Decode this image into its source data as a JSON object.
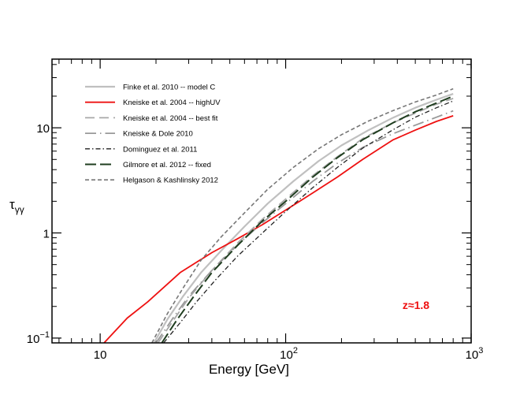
{
  "chart_data": {
    "type": "line",
    "title": "",
    "xlabel": "Energy [GeV]",
    "ylabel": "τγγ",
    "xscale": "log",
    "yscale": "log",
    "xlim": [
      5.5,
      1000
    ],
    "ylim": [
      0.09,
      45
    ],
    "x_ticks": [
      {
        "value": 10,
        "label": "10",
        "sup": ""
      },
      {
        "value": 100,
        "label": "10",
        "sup": "2"
      },
      {
        "value": 1000,
        "label": "10",
        "sup": "3"
      }
    ],
    "y_ticks": [
      {
        "value": 0.1,
        "label": "10",
        "sup": "−1"
      },
      {
        "value": 1,
        "label": "1",
        "sup": ""
      },
      {
        "value": 10,
        "label": "10",
        "sup": ""
      }
    ],
    "annotation": {
      "text": "z≈1.8",
      "color": "#ee1111"
    },
    "legend_position": "top-left",
    "series": [
      {
        "name": "Finke et al. 2010 -- model C",
        "color": "#c0c0c0",
        "dash": "",
        "width": 2.2,
        "x": [
          19.5,
          23,
          28,
          35,
          45,
          60,
          80,
          110,
          150,
          200,
          280,
          380,
          500,
          650,
          800
        ],
        "y": [
          0.09,
          0.15,
          0.25,
          0.42,
          0.68,
          1.15,
          1.9,
          3.1,
          4.8,
          6.8,
          9.5,
          12.5,
          15.5,
          18.5,
          21
        ]
      },
      {
        "name": "Kneiske et al. 2004 -- highUV",
        "color": "#ee1111",
        "dash": "",
        "width": 1.8,
        "x": [
          10.5,
          14,
          18,
          27,
          40,
          55,
          75,
          100,
          140,
          190,
          260,
          380,
          500,
          650,
          800
        ],
        "y": [
          0.09,
          0.155,
          0.22,
          0.42,
          0.65,
          0.88,
          1.2,
          1.65,
          2.4,
          3.4,
          5.0,
          7.7,
          9.5,
          11.5,
          13
        ]
      },
      {
        "name": "Kneiske et al. 2004 -- best fit",
        "color": "#a8a8a8",
        "dash": "12,6",
        "width": 1.8,
        "x": [
          20.5,
          25,
          30,
          40,
          55,
          75,
          100,
          140,
          190,
          260,
          380,
          500,
          650,
          800
        ],
        "y": [
          0.09,
          0.15,
          0.24,
          0.44,
          0.8,
          1.35,
          2.1,
          3.5,
          5.3,
          7.9,
          11.2,
          13.8,
          16.8,
          19
        ]
      },
      {
        "name": "Kneiske & Dole 2010",
        "color": "#999999",
        "dash": "14,5,1.5,5",
        "width": 1.8,
        "x": [
          20,
          25,
          30,
          40,
          55,
          75,
          100,
          140,
          190,
          260,
          380,
          500,
          650,
          800
        ],
        "y": [
          0.09,
          0.16,
          0.25,
          0.44,
          0.77,
          1.25,
          1.9,
          3.1,
          4.6,
          6.5,
          8.8,
          10.6,
          12.6,
          14.5
        ]
      },
      {
        "name": "Dominguez et al. 2011",
        "color": "#222222",
        "dash": "6,3,1.5,3",
        "width": 1.3,
        "x": [
          22,
          27,
          33,
          42,
          55,
          75,
          100,
          140,
          190,
          260,
          380,
          500,
          650,
          800
        ],
        "y": [
          0.09,
          0.14,
          0.22,
          0.36,
          0.6,
          1.0,
          1.6,
          2.7,
          4.2,
          6.4,
          9.6,
          12.6,
          15.5,
          18
        ]
      },
      {
        "name": "Gilmore et al. 2012 -- fixed",
        "color": "#1f3d1f",
        "dash": "14,5",
        "width": 2.0,
        "x": [
          21.5,
          26,
          32,
          40,
          55,
          75,
          100,
          140,
          190,
          260,
          380,
          500,
          650,
          800
        ],
        "y": [
          0.09,
          0.15,
          0.25,
          0.42,
          0.76,
          1.3,
          2.0,
          3.4,
          5.2,
          7.7,
          11.2,
          14.2,
          17.2,
          20
        ]
      },
      {
        "name": "Helgason & Kashlinsky 2012",
        "color": "#777777",
        "dash": "5,3",
        "width": 1.6,
        "x": [
          19,
          23,
          28,
          35,
          45,
          60,
          80,
          110,
          150,
          200,
          280,
          380,
          500,
          650,
          800
        ],
        "y": [
          0.09,
          0.17,
          0.3,
          0.55,
          0.92,
          1.55,
          2.6,
          4.2,
          6.3,
          8.6,
          11.6,
          14.6,
          17.6,
          20.5,
          23.5
        ]
      }
    ]
  }
}
